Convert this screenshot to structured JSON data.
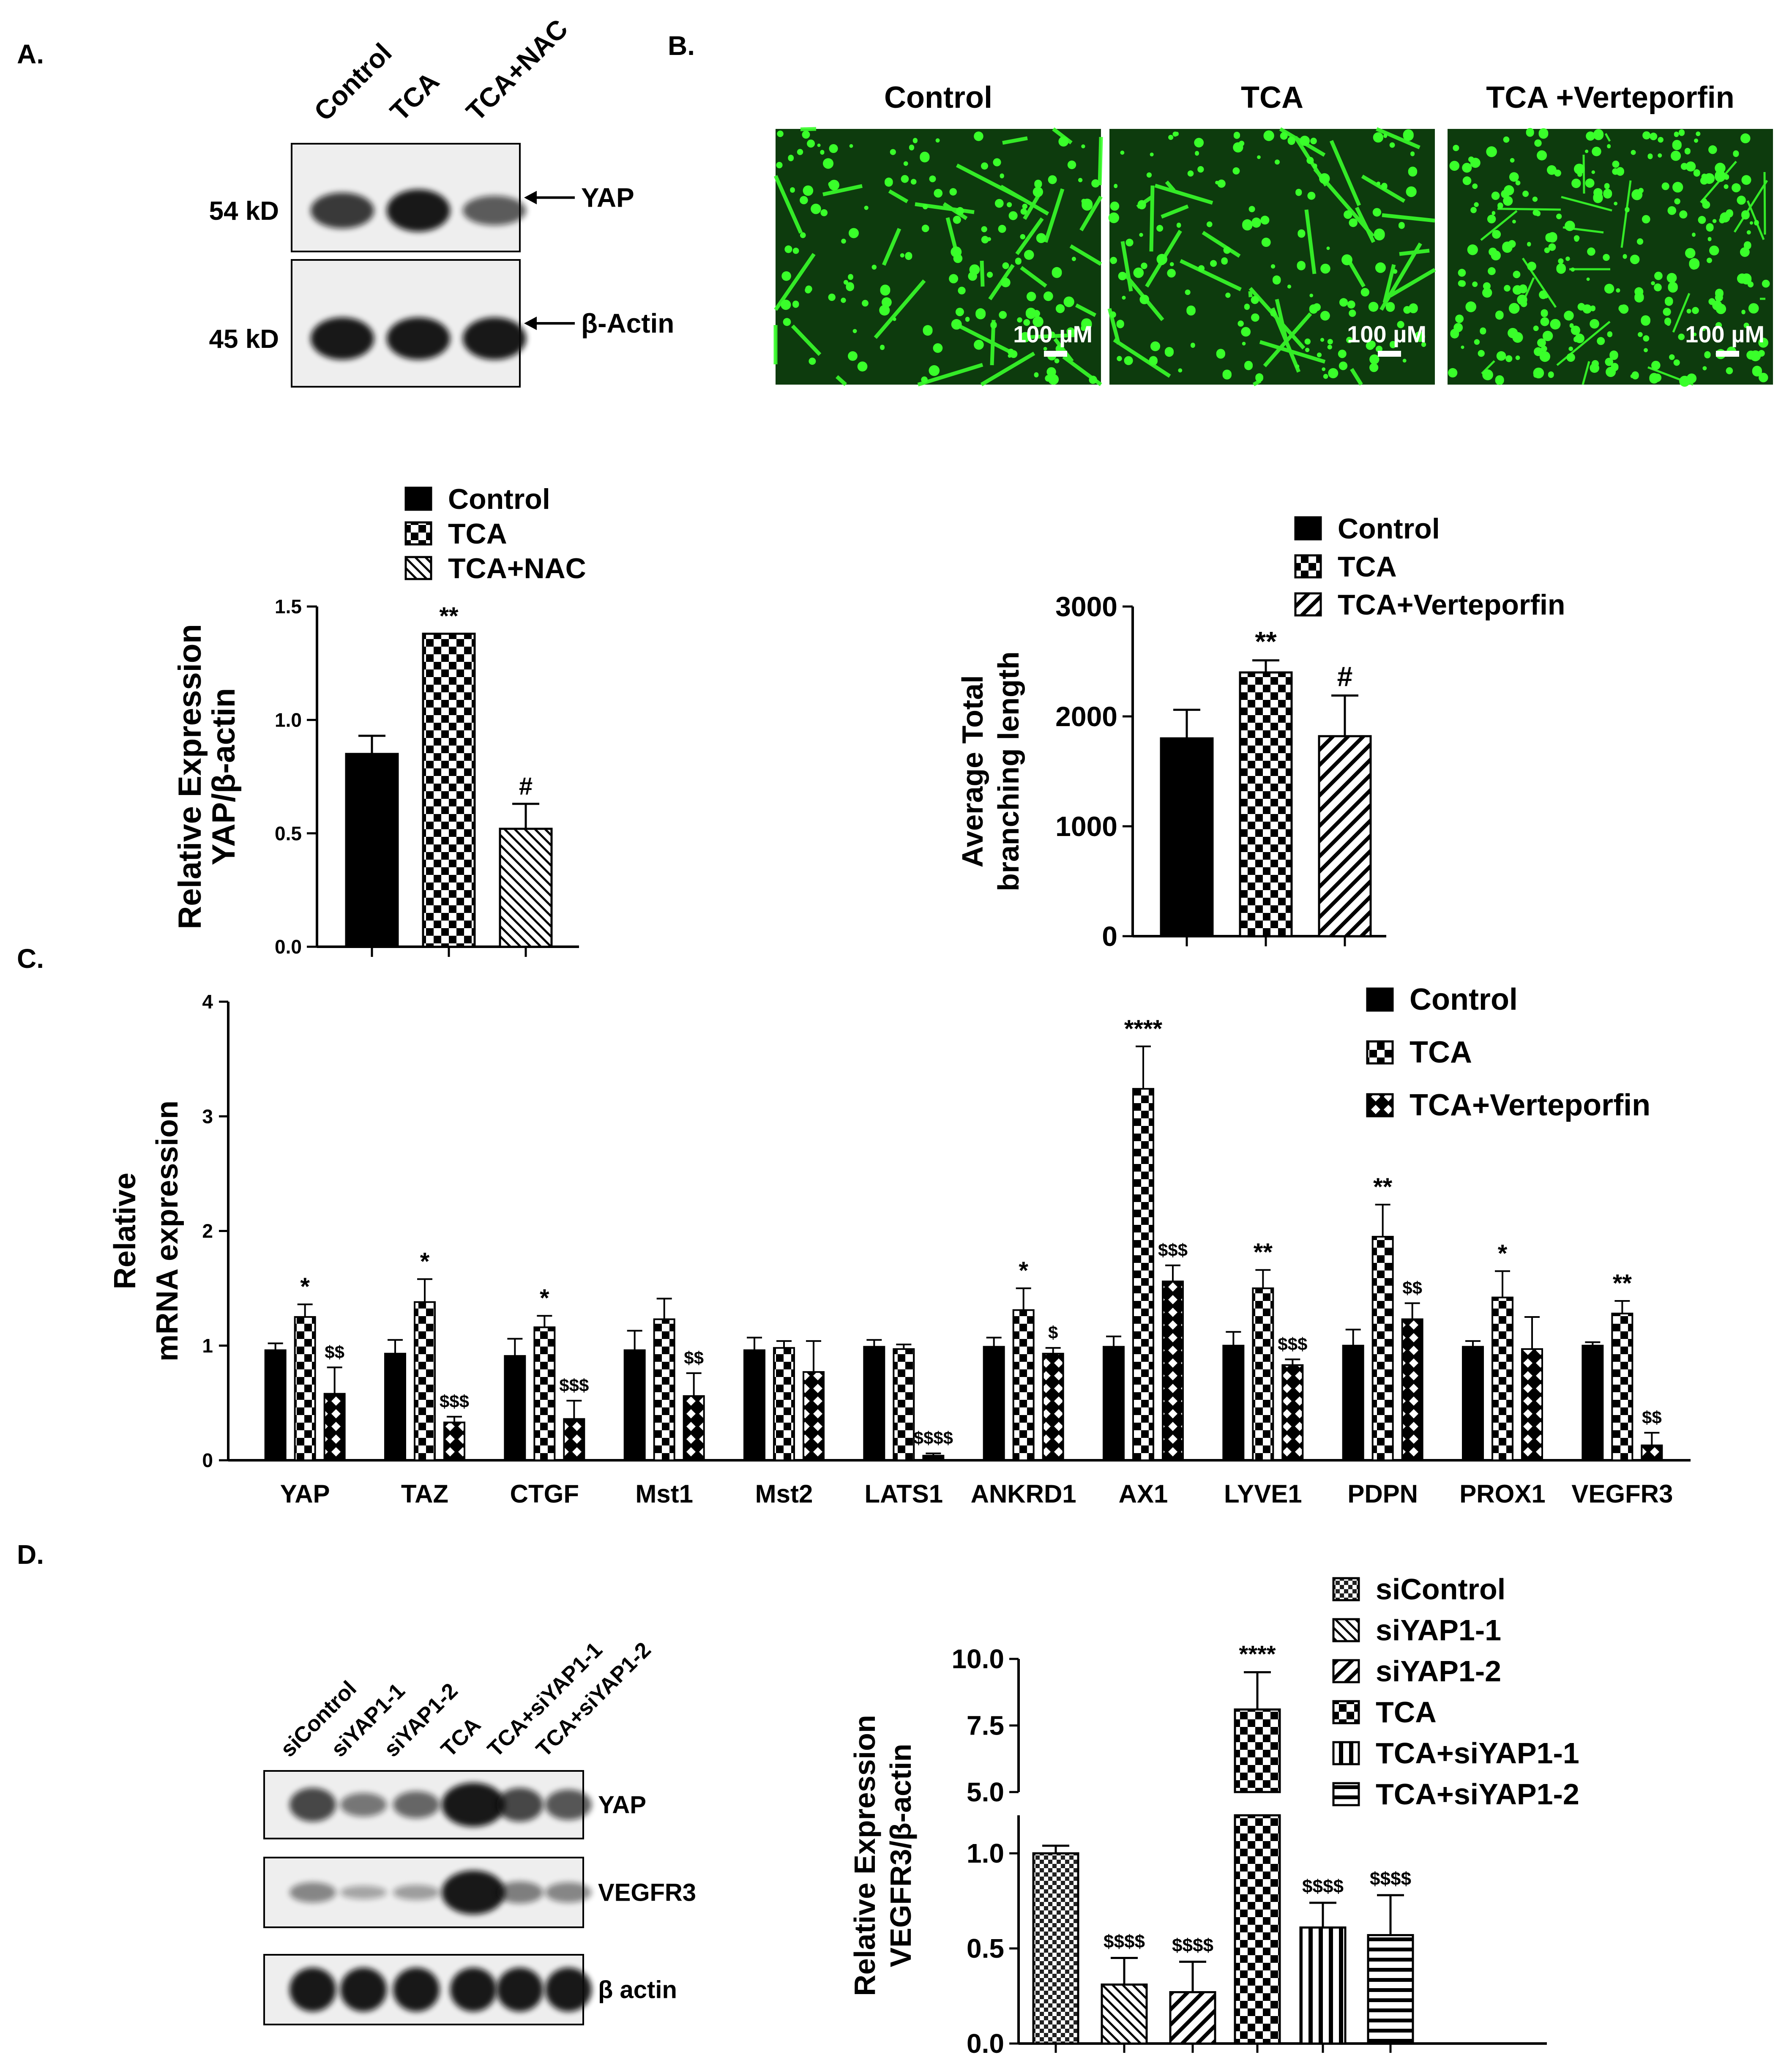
{
  "panel_labels": {
    "a": "A.",
    "b": "B.",
    "c": "C.",
    "d": "D."
  },
  "colors": {
    "bar": "#000000",
    "micro_bg": "#0d3b0d",
    "micro_fg": "#39ff2a",
    "blot_bg": "#eeeeee",
    "band": "#111111"
  },
  "panelA": {
    "lanes": [
      "Control",
      "TCA",
      "TCA+NAC"
    ],
    "blots": [
      {
        "kd": "54 kD",
        "target": "YAP",
        "intensity": [
          0.75,
          1.0,
          0.5
        ]
      },
      {
        "kd": "45 kD",
        "target": "β-Actin",
        "intensity": [
          1.0,
          1.0,
          1.0
        ]
      }
    ]
  },
  "panelB": {
    "titles": [
      "Control",
      "TCA",
      "TCA +Verteporfin"
    ],
    "scalebar_label": "100 µM"
  },
  "panelD_blot": {
    "lanes": [
      "siControl",
      "siYAP1-1",
      "siYAP1-2",
      "TCA",
      "TCA+siYAP1-1",
      "TCA+siYAP1-2"
    ],
    "blots": [
      {
        "target": "YAP",
        "intensity": [
          0.7,
          0.4,
          0.5,
          1.0,
          0.7,
          0.6
        ]
      },
      {
        "target": "VEGFR3",
        "intensity": [
          0.3,
          0.1,
          0.15,
          1.0,
          0.35,
          0.3
        ]
      },
      {
        "target": "β actin",
        "intensity": [
          1.0,
          1.0,
          1.0,
          1.0,
          1.0,
          1.0
        ]
      }
    ]
  },
  "chart_data": [
    {
      "id": "A",
      "type": "bar",
      "ylabel_lines": [
        "Relative Expression",
        "YAP/β-actin"
      ],
      "ylim": [
        0,
        1.5
      ],
      "yticks": [
        "0.0",
        "0.5",
        "1.0",
        "1.5"
      ],
      "categories": [
        "Control",
        "TCA",
        "TCA+NAC"
      ],
      "legend": [
        "Control",
        "TCA",
        "TCA+NAC"
      ],
      "series": [
        {
          "name": "Control",
          "pattern": "solid",
          "value": 0.85,
          "error": 0.08,
          "annotation": ""
        },
        {
          "name": "TCA",
          "pattern": "checker",
          "value": 1.38,
          "error": 0.0,
          "annotation": "**"
        },
        {
          "name": "TCA+NAC",
          "pattern": "back-diag",
          "value": 0.52,
          "error": 0.11,
          "annotation": "#"
        }
      ]
    },
    {
      "id": "B",
      "type": "bar",
      "ylabel_lines": [
        "Average Total",
        "branching length"
      ],
      "ylim": [
        0,
        3000
      ],
      "yticks": [
        "0",
        "1000",
        "2000",
        "3000"
      ],
      "categories": [
        "Control",
        "TCA",
        "TCA+Verteporfin"
      ],
      "legend": [
        "Control",
        "TCA",
        "TCA+Verteporfin"
      ],
      "series": [
        {
          "name": "Control",
          "pattern": "solid",
          "value": 1800,
          "error": 260,
          "annotation": ""
        },
        {
          "name": "TCA",
          "pattern": "checker",
          "value": 2400,
          "error": 110,
          "annotation": "**"
        },
        {
          "name": "TCA+Verteporfin",
          "pattern": "fwd-diag",
          "value": 1820,
          "error": 370,
          "annotation": "#"
        }
      ]
    },
    {
      "id": "C",
      "type": "bar",
      "ylabel_lines": [
        "Relative",
        "mRNA expression"
      ],
      "ylim": [
        0,
        4
      ],
      "yticks": [
        "0",
        "1",
        "2",
        "3",
        "4"
      ],
      "legend": [
        "Control",
        "TCA",
        "TCA+Verteporfin"
      ],
      "categories": [
        "YAP",
        "TAZ",
        "CTGF",
        "Mst1",
        "Mst2",
        "LATS1",
        "ANKRD1",
        "AX1",
        "LYVE1",
        "PDPN",
        "PROX1",
        "VEGFR3"
      ],
      "series": [
        {
          "name": "Control",
          "pattern": "solid",
          "values": [
            0.96,
            0.93,
            0.91,
            0.96,
            0.96,
            0.99,
            0.99,
            0.99,
            1.0,
            1.0,
            0.99,
            1.0
          ],
          "errors": [
            0.06,
            0.12,
            0.15,
            0.17,
            0.11,
            0.06,
            0.08,
            0.09,
            0.12,
            0.14,
            0.05,
            0.03
          ],
          "annotations": [
            "",
            "",
            "",
            "",
            "",
            "",
            "",
            "",
            "",
            "",
            "",
            ""
          ]
        },
        {
          "name": "TCA",
          "pattern": "checker",
          "values": [
            1.25,
            1.38,
            1.16,
            1.23,
            0.98,
            0.97,
            1.31,
            3.24,
            1.5,
            1.95,
            1.42,
            1.28
          ],
          "errors": [
            0.11,
            0.2,
            0.1,
            0.18,
            0.06,
            0.04,
            0.19,
            0.37,
            0.16,
            0.28,
            0.23,
            0.11
          ],
          "annotations": [
            "*",
            "*",
            "*",
            "",
            "",
            "",
            "*",
            "****",
            "**",
            "**",
            "*",
            "**"
          ]
        },
        {
          "name": "TCA+Verteporfin",
          "pattern": "diamond",
          "values": [
            0.58,
            0.33,
            0.36,
            0.56,
            0.77,
            0.04,
            0.93,
            1.56,
            0.83,
            1.23,
            0.97,
            0.13
          ],
          "errors": [
            0.23,
            0.05,
            0.16,
            0.2,
            0.27,
            0.02,
            0.05,
            0.14,
            0.05,
            0.14,
            0.28,
            0.11
          ],
          "annotations": [
            "$$",
            "$$$",
            "$$$",
            "$$",
            "",
            "$$$$",
            "$",
            "$$$",
            "$$$",
            "$$",
            "",
            "$$"
          ]
        }
      ]
    },
    {
      "id": "D",
      "type": "bar",
      "ylabel_lines": [
        "Relative Expression",
        "VEGFR3/β-actin"
      ],
      "axis_break": {
        "lower": [
          0,
          1.2
        ],
        "upper": [
          5.0,
          10.0
        ]
      },
      "yticks_lower": [
        "0.0",
        "0.5",
        "1.0"
      ],
      "yticks_upper": [
        "5.0",
        "7.5",
        "10.0"
      ],
      "categories": [
        "siControl",
        "siYAP1-1",
        "siYAP1-2",
        "TCA",
        "TCA+siYAP1-1",
        "TCA+siYAP1-2"
      ],
      "legend": [
        "siControl",
        "siYAP1-1",
        "siYAP1-2",
        "TCA",
        "TCA+siYAP1-1",
        "TCA+siYAP1-2"
      ],
      "series": [
        {
          "name": "siControl",
          "pattern": "fine-checker",
          "value": 1.0,
          "error": 0.04,
          "annotation": ""
        },
        {
          "name": "siYAP1-1",
          "pattern": "back-diag",
          "value": 0.31,
          "error": 0.14,
          "annotation": "$$$$"
        },
        {
          "name": "siYAP1-2",
          "pattern": "fwd-diag",
          "value": 0.27,
          "error": 0.16,
          "annotation": "$$$$"
        },
        {
          "name": "TCA",
          "pattern": "checker",
          "value": 8.1,
          "error": 1.4,
          "annotation": "****"
        },
        {
          "name": "TCA+siYAP1-1",
          "pattern": "vertical",
          "value": 0.61,
          "error": 0.13,
          "annotation": "$$$$"
        },
        {
          "name": "TCA+siYAP1-2",
          "pattern": "horizontal",
          "value": 0.57,
          "error": 0.21,
          "annotation": "$$$$"
        }
      ]
    }
  ]
}
